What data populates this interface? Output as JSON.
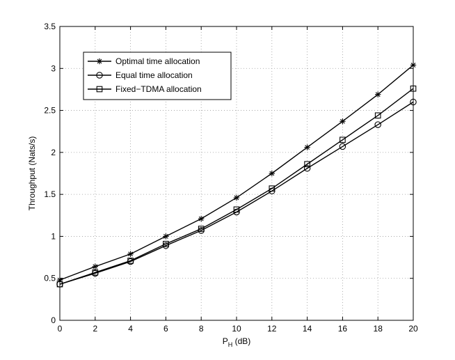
{
  "chart_data": {
    "type": "line",
    "title": "",
    "xlabel_main": "P",
    "xlabel_sub": "H",
    "xlabel_unit": " (dB)",
    "ylabel": "Throughput (Nats/s)",
    "xlim": [
      0,
      20
    ],
    "ylim": [
      0,
      3.5
    ],
    "xticks": [
      0,
      2,
      4,
      6,
      8,
      10,
      12,
      14,
      16,
      18,
      20
    ],
    "yticks": [
      0,
      0.5,
      1,
      1.5,
      2,
      2.5,
      3,
      3.5
    ],
    "xtick_labels": [
      "0",
      "2",
      "4",
      "6",
      "8",
      "10",
      "12",
      "14",
      "16",
      "18",
      "20"
    ],
    "ytick_labels": [
      "0",
      "0.5",
      "1",
      "1.5",
      "2",
      "2.5",
      "3",
      "3.5"
    ],
    "grid": true,
    "legend_position": "top-left",
    "x": [
      0,
      2,
      4,
      6,
      8,
      10,
      12,
      14,
      16,
      18,
      20
    ],
    "series": [
      {
        "name": "Optimal time allocation",
        "marker": "asterisk",
        "values": [
          0.48,
          0.64,
          0.79,
          1.0,
          1.21,
          1.46,
          1.75,
          2.06,
          2.37,
          2.69,
          3.04
        ]
      },
      {
        "name": "Equal time allocation",
        "marker": "circle",
        "values": [
          0.43,
          0.56,
          0.7,
          0.89,
          1.07,
          1.29,
          1.54,
          1.81,
          2.07,
          2.33,
          2.6
        ]
      },
      {
        "name": "Fixed−TDMA allocation",
        "marker": "square",
        "values": [
          0.43,
          0.57,
          0.71,
          0.91,
          1.09,
          1.32,
          1.57,
          1.86,
          2.15,
          2.44,
          2.76
        ]
      }
    ]
  }
}
